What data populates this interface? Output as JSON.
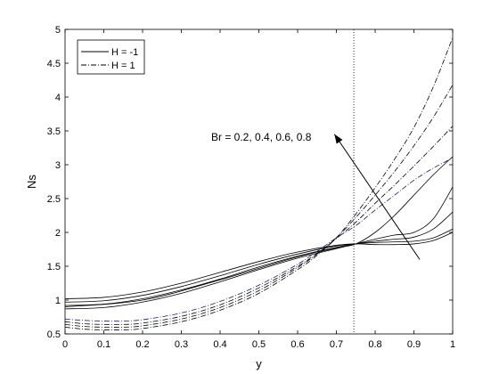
{
  "chart_data": {
    "type": "line",
    "xlabel": "y",
    "ylabel": "Ns",
    "xlim": [
      0,
      1
    ],
    "ylim": [
      0.5,
      5
    ],
    "xticks": [
      0,
      0.1,
      0.2,
      0.3,
      0.4,
      0.5,
      0.6,
      0.7,
      0.8,
      0.9,
      1
    ],
    "xtick_labels": [
      "0",
      "0.1",
      "0.2",
      "0.3",
      "0.4",
      "0.5",
      "0.6",
      "0.7",
      "0.8",
      "0.9",
      "1"
    ],
    "yticks": [
      0.5,
      1,
      1.5,
      2,
      2.5,
      3,
      3.5,
      4,
      4.5,
      5
    ],
    "ytick_labels": [
      "0.5",
      "1",
      "1.5",
      "2",
      "2.5",
      "3",
      "3.5",
      "4",
      "4.5",
      "5"
    ],
    "grid": false,
    "legend_position": "top-left",
    "legend": [
      {
        "label": "H = -1",
        "style": "solid",
        "color": "#000000"
      },
      {
        "label": "H = 1",
        "style": "dashdot",
        "color": "#000000"
      }
    ],
    "vertical_reference_line": {
      "x": 0.745,
      "style": "dotted"
    },
    "annotation": {
      "text": "Br = 0.2, 0.4, 0.6, 0.8",
      "arrow_from": [
        0.915,
        1.6
      ],
      "arrow_to": [
        0.695,
        3.45
      ]
    },
    "series": [
      {
        "group": "H = -1",
        "style": "solid",
        "color": "#000000",
        "x": [
          0,
          0.1,
          0.2,
          0.3,
          0.4,
          0.5,
          0.6,
          0.7,
          0.75,
          0.8,
          0.85,
          0.9,
          0.95,
          1
        ],
        "y": [
          0.87,
          0.89,
          0.97,
          1.1,
          1.27,
          1.45,
          1.62,
          1.76,
          1.83,
          1.9,
          1.96,
          2.0,
          2.2,
          2.67
        ]
      },
      {
        "group": "H = -1",
        "style": "solid",
        "color": "#000000",
        "x": [
          0,
          0.1,
          0.2,
          0.3,
          0.4,
          0.5,
          0.6,
          0.7,
          0.75,
          0.8,
          0.85,
          0.9,
          0.95,
          1
        ],
        "y": [
          0.92,
          0.94,
          1.02,
          1.15,
          1.31,
          1.49,
          1.65,
          1.78,
          1.83,
          1.87,
          1.9,
          1.93,
          2.05,
          2.3
        ]
      },
      {
        "group": "H = -1",
        "style": "solid",
        "color": "#000000",
        "x": [
          0,
          0.1,
          0.2,
          0.3,
          0.4,
          0.5,
          0.6,
          0.7,
          0.75,
          0.8,
          0.85,
          0.9,
          0.95,
          1
        ],
        "y": [
          0.97,
          0.99,
          1.07,
          1.2,
          1.36,
          1.53,
          1.68,
          1.8,
          1.83,
          1.85,
          1.86,
          1.87,
          1.92,
          2.05
        ]
      },
      {
        "group": "H = -1",
        "style": "solid",
        "color": "#000000",
        "x": [
          0,
          0.1,
          0.2,
          0.3,
          0.4,
          0.5,
          0.6,
          0.7,
          0.75,
          0.8,
          0.85,
          0.9,
          0.95,
          1
        ],
        "y": [
          1.02,
          1.04,
          1.12,
          1.25,
          1.41,
          1.57,
          1.71,
          1.81,
          1.83,
          1.82,
          1.82,
          1.83,
          1.88,
          2.0
        ]
      },
      {
        "group": "H = -1",
        "style": "solid",
        "color": "#000000",
        "x": [
          0,
          0.2,
          0.4,
          0.6,
          0.7,
          0.75,
          0.8,
          0.85,
          0.9,
          0.95,
          1
        ],
        "y": [
          0.9,
          1.0,
          1.3,
          1.64,
          1.77,
          1.83,
          2.0,
          2.25,
          2.55,
          2.85,
          3.12
        ]
      },
      {
        "group": "H = 1",
        "style": "dashdot",
        "color": "#000000",
        "x": [
          0,
          0.05,
          0.1,
          0.15,
          0.2,
          0.3,
          0.4,
          0.5,
          0.6,
          0.65,
          0.7,
          0.75,
          0.8,
          0.85,
          0.9,
          0.95,
          1
        ],
        "y": [
          0.6,
          0.57,
          0.56,
          0.56,
          0.58,
          0.68,
          0.85,
          1.1,
          1.45,
          1.66,
          1.92,
          2.27,
          2.66,
          3.08,
          3.55,
          4.15,
          4.88
        ]
      },
      {
        "group": "H = 1",
        "style": "dashdot",
        "color": "#000000",
        "x": [
          0,
          0.05,
          0.1,
          0.15,
          0.2,
          0.3,
          0.4,
          0.5,
          0.6,
          0.65,
          0.7,
          0.75,
          0.8,
          0.85,
          0.9,
          0.95,
          1
        ],
        "y": [
          0.64,
          0.61,
          0.6,
          0.6,
          0.62,
          0.72,
          0.89,
          1.14,
          1.48,
          1.68,
          1.92,
          2.22,
          2.55,
          2.9,
          3.28,
          3.7,
          4.18
        ]
      },
      {
        "group": "H = 1",
        "style": "dashdot",
        "color": "#000000",
        "x": [
          0,
          0.05,
          0.1,
          0.15,
          0.2,
          0.3,
          0.4,
          0.5,
          0.6,
          0.65,
          0.7,
          0.75,
          0.8,
          0.85,
          0.9,
          0.95,
          1
        ],
        "y": [
          0.68,
          0.65,
          0.64,
          0.64,
          0.66,
          0.76,
          0.93,
          1.18,
          1.5,
          1.69,
          1.91,
          2.15,
          2.43,
          2.7,
          2.98,
          3.27,
          3.57
        ]
      },
      {
        "group": "H = 1",
        "style": "dashdot",
        "color": "#1a1a6e",
        "x": [
          0,
          0.05,
          0.1,
          0.15,
          0.2,
          0.3,
          0.4,
          0.5,
          0.6,
          0.65,
          0.7,
          0.75,
          0.8,
          0.85,
          0.9,
          0.95,
          1
        ],
        "y": [
          0.72,
          0.7,
          0.69,
          0.69,
          0.71,
          0.81,
          0.98,
          1.22,
          1.53,
          1.72,
          1.92,
          2.1,
          2.33,
          2.55,
          2.77,
          2.95,
          3.1
        ]
      }
    ]
  }
}
